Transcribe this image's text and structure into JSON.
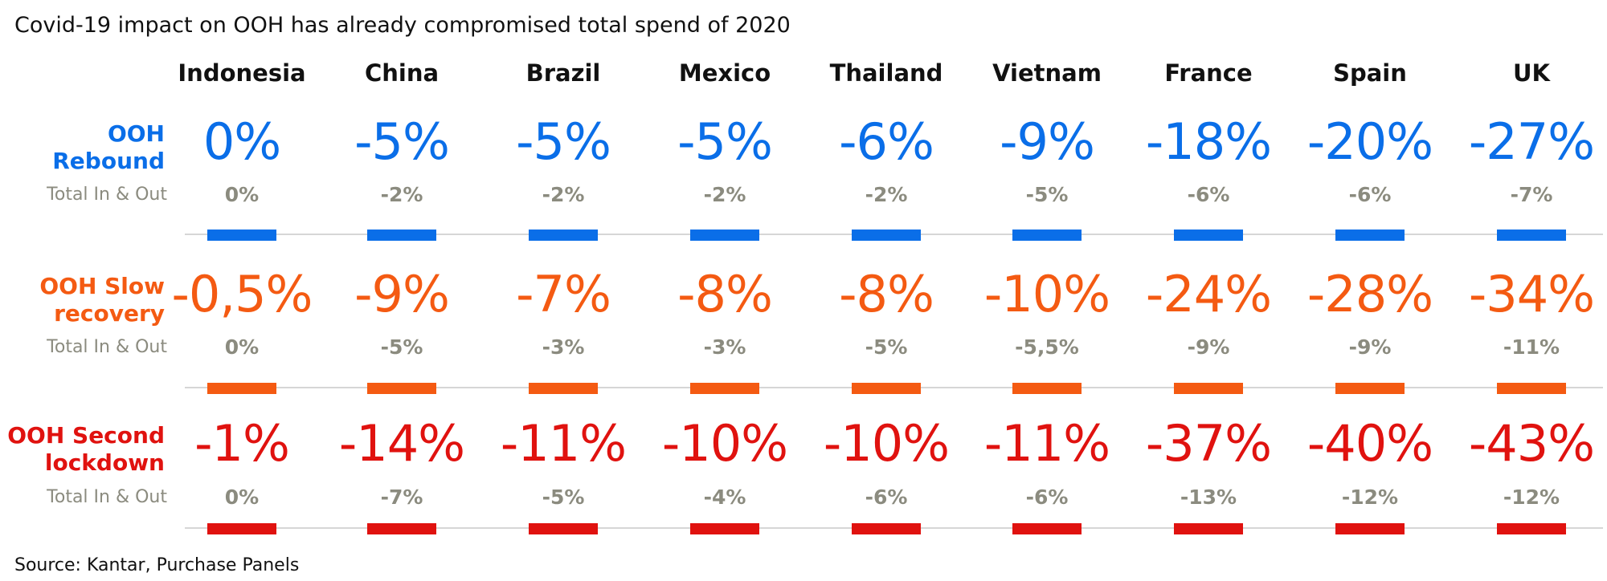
{
  "title": "Covid-19 impact on OOH has already compromised total spend of 2020",
  "source": "Source: Kantar, Purchase Panels",
  "chart_data": {
    "type": "table",
    "categories": [
      "Indonesia",
      "China",
      "Brazil",
      "Mexico",
      "Thailand",
      "Vietnam",
      "France",
      "Spain",
      "UK"
    ],
    "total_label": "Total In & Out",
    "scenarios": [
      {
        "label_line1": "OOH",
        "label_line2": "Rebound",
        "color": "#0a6ee8",
        "ooh": [
          "0%",
          "-5%",
          "-5%",
          "-5%",
          "-6%",
          "-9%",
          "-18%",
          "-20%",
          "-27%"
        ],
        "total": [
          "0%",
          "-2%",
          "-2%",
          "-2%",
          "-2%",
          "-5%",
          "-6%",
          "-6%",
          "-7%"
        ]
      },
      {
        "label_line1": "OOH Slow",
        "label_line2": "recovery",
        "color": "#f45a12",
        "ooh": [
          "-0,5%",
          "-9%",
          "-7%",
          "-8%",
          "-8%",
          "-10%",
          "-24%",
          "-28%",
          "-34%"
        ],
        "total": [
          "0%",
          "-5%",
          "-3%",
          "-3%",
          "-5%",
          "-5,5%",
          "-9%",
          "-9%",
          "-11%"
        ]
      },
      {
        "label_line1": "OOH Second",
        "label_line2": "lockdown",
        "color": "#e0120f",
        "ooh": [
          "-1%",
          "-14%",
          "-11%",
          "-10%",
          "-10%",
          "-11%",
          "-37%",
          "-40%",
          "-43%"
        ],
        "total": [
          "0%",
          "-7%",
          "-5%",
          "-4%",
          "-6%",
          "-6%",
          "-13%",
          "-12%",
          "-12%"
        ]
      }
    ]
  }
}
